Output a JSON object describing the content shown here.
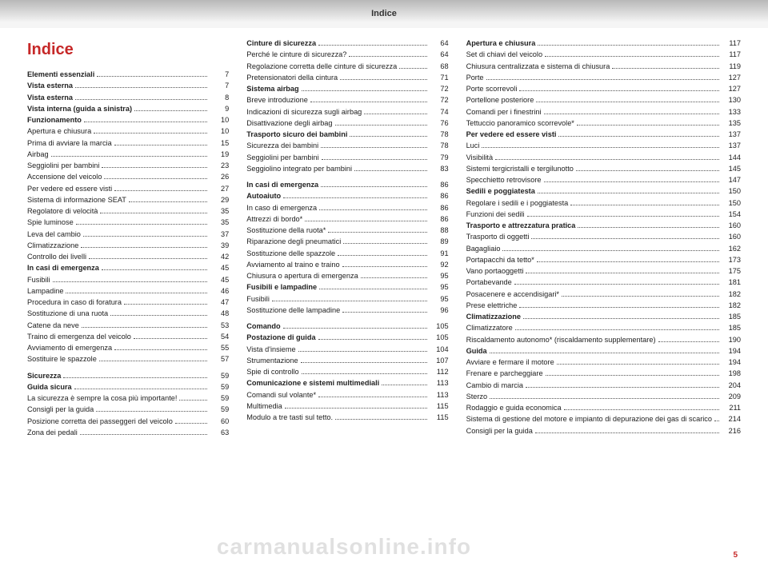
{
  "header": "Indice",
  "title": "Indice",
  "page_number": "5",
  "watermark": "carmanualsonline.info",
  "colors": {
    "accent": "#c62828",
    "text": "#222",
    "header_grad_top": "#b8b8b8",
    "header_grad_bot": "#f5f5f5"
  },
  "columns": [
    [
      {
        "label": "Elementi essenziali",
        "page": "7",
        "bold": true
      },
      {
        "label": "Vista esterna",
        "page": "7",
        "bold": true
      },
      {
        "label": "Vista esterna",
        "page": "8",
        "bold": true
      },
      {
        "label": "Vista interna (guida a sinistra)",
        "page": "9",
        "bold": true
      },
      {
        "label": "Funzionamento",
        "page": "10",
        "bold": true
      },
      {
        "label": "Apertura e chiusura",
        "page": "10"
      },
      {
        "label": "Prima di avviare la marcia",
        "page": "15"
      },
      {
        "label": "Airbag",
        "page": "19"
      },
      {
        "label": "Seggiolini per bambini",
        "page": "23"
      },
      {
        "label": "Accensione del veicolo",
        "page": "26"
      },
      {
        "label": "Per vedere ed essere visti",
        "page": "27"
      },
      {
        "label": "Sistema di informazione SEAT",
        "page": "29"
      },
      {
        "label": "Regolatore di velocità",
        "page": "35"
      },
      {
        "label": "Spie luminose",
        "page": "35"
      },
      {
        "label": "Leva del cambio",
        "page": "37"
      },
      {
        "label": "Climatizzazione",
        "page": "39"
      },
      {
        "label": "Controllo dei livelli",
        "page": "42"
      },
      {
        "label": "In casi di emergenza",
        "page": "45",
        "bold": true
      },
      {
        "label": "Fusibili",
        "page": "45"
      },
      {
        "label": "Lampadine",
        "page": "46"
      },
      {
        "label": "Procedura in caso di foratura",
        "page": "47"
      },
      {
        "label": "Sostituzione di una ruota",
        "page": "48"
      },
      {
        "label": "Catene da neve",
        "page": "53"
      },
      {
        "label": "Traino di emergenza del veicolo",
        "page": "54"
      },
      {
        "label": "Avviamento di emergenza",
        "page": "55"
      },
      {
        "label": "Sostituire le spazzole",
        "page": "57"
      },
      {
        "label": "Sicurezza",
        "page": "59",
        "bold": true,
        "subhead": true
      },
      {
        "label": "Guida sicura",
        "page": "59",
        "bold": true
      },
      {
        "label": "La sicurezza è sempre la cosa più importante!",
        "page": "59"
      },
      {
        "label": "Consigli per la guida",
        "page": "59"
      },
      {
        "label": "Posizione corretta dei passeggeri del veicolo",
        "page": "60"
      },
      {
        "label": "Zona dei pedali",
        "page": "63"
      }
    ],
    [
      {
        "label": "Cinture di sicurezza",
        "page": "64",
        "bold": true
      },
      {
        "label": "Perché le cinture di sicurezza?",
        "page": "64"
      },
      {
        "label": "Regolazione corretta delle cinture di sicurezza",
        "page": "68"
      },
      {
        "label": "Pretensionatori della cintura",
        "page": "71"
      },
      {
        "label": "Sistema airbag",
        "page": "72",
        "bold": true
      },
      {
        "label": "Breve introduzione",
        "page": "72"
      },
      {
        "label": "Indicazioni di sicurezza sugli airbag",
        "page": "74"
      },
      {
        "label": "Disattivazione degli airbag",
        "page": "76"
      },
      {
        "label": "Trasporto sicuro dei bambini",
        "page": "78",
        "bold": true
      },
      {
        "label": "Sicurezza dei bambini",
        "page": "78"
      },
      {
        "label": "Seggiolini per bambini",
        "page": "79"
      },
      {
        "label": "Seggiolino integrato per bambini",
        "page": "83"
      },
      {
        "label": "In casi di emergenza",
        "page": "86",
        "bold": true,
        "subhead": true
      },
      {
        "label": "Autoaiuto",
        "page": "86",
        "bold": true
      },
      {
        "label": "In caso di emergenza",
        "page": "86"
      },
      {
        "label": "Attrezzi di bordo*",
        "page": "86"
      },
      {
        "label": "Sostituzione della ruota*",
        "page": "88"
      },
      {
        "label": "Riparazione degli pneumatici",
        "page": "89"
      },
      {
        "label": "Sostituzione delle spazzole",
        "page": "91"
      },
      {
        "label": "Avviamento al traino e traino",
        "page": "92"
      },
      {
        "label": "Chiusura o apertura di emergenza",
        "page": "95"
      },
      {
        "label": "Fusibili e lampadine",
        "page": "95",
        "bold": true
      },
      {
        "label": "Fusibili",
        "page": "95"
      },
      {
        "label": "Sostituzione delle lampadine",
        "page": "96"
      },
      {
        "label": "Comando",
        "page": "105",
        "bold": true,
        "subhead": true
      },
      {
        "label": "Postazione di guida",
        "page": "105",
        "bold": true
      },
      {
        "label": "Vista d'insieme",
        "page": "104"
      },
      {
        "label": "Strumentazione",
        "page": "107"
      },
      {
        "label": "Spie di controllo",
        "page": "112"
      },
      {
        "label": "Comunicazione e sistemi multimediali",
        "page": "113",
        "bold": true
      },
      {
        "label": "Comandi sul volante*",
        "page": "113"
      },
      {
        "label": "Multimedia",
        "page": "115"
      },
      {
        "label": "Modulo a tre tasti sul tetto.",
        "page": "115"
      }
    ],
    [
      {
        "label": "Apertura e chiusura",
        "page": "117",
        "bold": true
      },
      {
        "label": "Set di chiavi del veicolo",
        "page": "117"
      },
      {
        "label": "Chiusura centralizzata e sistema di chiusura",
        "page": "119"
      },
      {
        "label": "Porte",
        "page": "127"
      },
      {
        "label": "Porte scorrevoli",
        "page": "127"
      },
      {
        "label": "Portellone posteriore",
        "page": "130"
      },
      {
        "label": "Comandi per i finestrini",
        "page": "133"
      },
      {
        "label": "Tettuccio panoramico scorrevole*",
        "page": "135"
      },
      {
        "label": "Per vedere ed essere visti",
        "page": "137",
        "bold": true
      },
      {
        "label": "Luci",
        "page": "137"
      },
      {
        "label": "Visibilità",
        "page": "144"
      },
      {
        "label": "Sistemi tergicristalli e tergilunotto",
        "page": "145"
      },
      {
        "label": "Specchietto retrovisore",
        "page": "147"
      },
      {
        "label": "Sedili e poggiatesta",
        "page": "150",
        "bold": true
      },
      {
        "label": "Regolare i sedili e i poggiatesta",
        "page": "150"
      },
      {
        "label": "Funzioni dei sedili",
        "page": "154"
      },
      {
        "label": "Trasporto e attrezzatura pratica",
        "page": "160",
        "bold": true
      },
      {
        "label": "Trasporto di oggetti",
        "page": "160"
      },
      {
        "label": "Bagagliaio",
        "page": "162"
      },
      {
        "label": "Portapacchi da tetto*",
        "page": "173"
      },
      {
        "label": "Vano portaoggetti",
        "page": "175"
      },
      {
        "label": "Portabevande",
        "page": "181"
      },
      {
        "label": "Posacenere e accendisigari*",
        "page": "182"
      },
      {
        "label": "Prese elettriche",
        "page": "182"
      },
      {
        "label": "Climatizzazione",
        "page": "185",
        "bold": true
      },
      {
        "label": "Climatizzatore",
        "page": "185"
      },
      {
        "label": "Riscaldamento autonomo* (riscaldamento supplementare)",
        "page": "190"
      },
      {
        "label": "Guida",
        "page": "194",
        "bold": true
      },
      {
        "label": "Avviare e fermare il motore",
        "page": "194"
      },
      {
        "label": "Frenare e parcheggiare",
        "page": "198"
      },
      {
        "label": "Cambio di marcia",
        "page": "204"
      },
      {
        "label": "Sterzo",
        "page": "209"
      },
      {
        "label": "Rodaggio e guida economica",
        "page": "211"
      },
      {
        "label": "Sistema di gestione del motore e impianto di depurazione dei gas di scarico",
        "page": "214"
      },
      {
        "label": "Consigli per la guida",
        "page": "216"
      }
    ]
  ]
}
